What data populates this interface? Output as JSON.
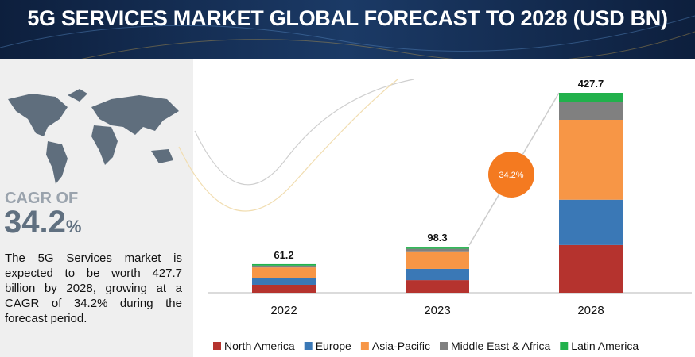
{
  "title": "5G SERVICES MARKET GLOBAL FORECAST TO 2028 (USD BN)",
  "cagr_label": "CAGR OF",
  "cagr_value": "34.2",
  "cagr_unit": "%",
  "description": "The 5G Services market is expected to be worth 427.7 billion by 2028, growing at a CAGR of 34.2% during the forecast period.",
  "chart_data": {
    "type": "stacked_bar",
    "categories": [
      "2022",
      "2023",
      "2028"
    ],
    "totals": [
      61.2,
      98.3,
      427.7
    ],
    "annotation": "34.2%",
    "series": [
      {
        "name": "North America",
        "color": "#b5332e",
        "values": [
          17,
          27,
          102
        ]
      },
      {
        "name": "Europe",
        "color": "#3a78b6",
        "values": [
          15,
          24,
          97
        ]
      },
      {
        "name": "Asia-Pacific",
        "color": "#f79646",
        "values": [
          22,
          36,
          171
        ]
      },
      {
        "name": "Middle East & Africa",
        "color": "#808080",
        "values": [
          4,
          7,
          38.7
        ]
      },
      {
        "name": "Latin America",
        "color": "#22b14c",
        "values": [
          3.2,
          4.3,
          19
        ]
      }
    ]
  }
}
